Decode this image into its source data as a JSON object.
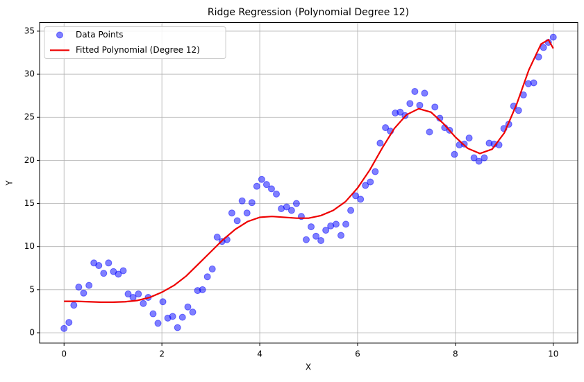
{
  "chart_data": {
    "type": "scatter",
    "title": "Ridge Regression (Polynomial Degree 12)",
    "x_label": "X",
    "y_label": "Y",
    "xlim": [
      -0.5,
      10.5
    ],
    "ylim": [
      -1.2,
      36.0
    ],
    "xticks": [
      0,
      2,
      4,
      6,
      8,
      10
    ],
    "yticks": [
      0,
      5,
      10,
      15,
      20,
      25,
      30,
      35
    ],
    "grid": true,
    "legend": "upper left",
    "series": [
      {
        "name": "Data Points",
        "type": "scatter",
        "color": "#0000ff",
        "opacity": 0.5,
        "x": [
          0,
          0.1,
          0.2,
          0.3,
          0.4,
          0.51,
          0.61,
          0.71,
          0.81,
          0.91,
          1.01,
          1.11,
          1.21,
          1.31,
          1.41,
          1.52,
          1.62,
          1.72,
          1.82,
          1.92,
          2.02,
          2.12,
          2.22,
          2.32,
          2.42,
          2.53,
          2.63,
          2.73,
          2.83,
          2.93,
          3.03,
          3.13,
          3.23,
          3.33,
          3.43,
          3.54,
          3.64,
          3.74,
          3.84,
          3.94,
          4.04,
          4.14,
          4.24,
          4.34,
          4.44,
          4.55,
          4.65,
          4.75,
          4.85,
          4.95,
          5.05,
          5.15,
          5.25,
          5.35,
          5.45,
          5.56,
          5.66,
          5.76,
          5.86,
          5.96,
          6.06,
          6.16,
          6.26,
          6.36,
          6.46,
          6.57,
          6.67,
          6.77,
          6.87,
          6.97,
          7.07,
          7.17,
          7.27,
          7.37,
          7.47,
          7.58,
          7.68,
          7.78,
          7.88,
          7.98,
          8.08,
          8.18,
          8.28,
          8.38,
          8.48,
          8.59,
          8.69,
          8.79,
          8.89,
          8.99,
          9.09,
          9.19,
          9.29,
          9.39,
          9.49,
          9.6,
          9.7,
          9.8,
          9.9,
          10
        ],
        "values": [
          0.5,
          1.2,
          3.2,
          5.3,
          4.6,
          5.5,
          8.1,
          7.8,
          6.9,
          8.1,
          7.1,
          6.8,
          7.2,
          4.5,
          4.1,
          4.5,
          3.4,
          4.1,
          2.2,
          1.1,
          3.6,
          1.7,
          1.9,
          0.6,
          1.8,
          3.0,
          2.4,
          4.9,
          5.0,
          6.5,
          7.4,
          11.1,
          10.6,
          10.8,
          13.9,
          13.0,
          15.3,
          13.9,
          15.1,
          17.0,
          17.8,
          17.2,
          16.7,
          16.1,
          14.4,
          14.6,
          14.2,
          15.0,
          13.5,
          10.8,
          12.3,
          11.2,
          10.7,
          11.9,
          12.4,
          12.6,
          11.3,
          12.6,
          14.2,
          15.9,
          15.5,
          17.1,
          17.5,
          18.7,
          22.0,
          23.8,
          23.4,
          25.5,
          25.6,
          25.2,
          26.6,
          28.0,
          26.4,
          27.8,
          23.3,
          26.2,
          24.9,
          23.8,
          23.5,
          20.7,
          21.8,
          21.9,
          22.6,
          20.3,
          19.9,
          20.3,
          22.0,
          21.9,
          21.8,
          23.7,
          24.2,
          26.3,
          25.8,
          27.6,
          28.9,
          29.0,
          32.0,
          33.1,
          33.7,
          34.3
        ]
      },
      {
        "name": "Fitted Polynomial (Degree 12)",
        "type": "line",
        "color": "#ee0000",
        "x": [
          0,
          0.25,
          0.5,
          0.75,
          1,
          1.25,
          1.5,
          1.75,
          2,
          2.25,
          2.5,
          2.75,
          3,
          3.25,
          3.5,
          3.75,
          4,
          4.25,
          4.5,
          4.75,
          5,
          5.25,
          5.5,
          5.75,
          6,
          6.25,
          6.5,
          6.75,
          7,
          7.25,
          7.5,
          7.75,
          8,
          8.25,
          8.5,
          8.75,
          9,
          9.25,
          9.5,
          9.75,
          9.9,
          10
        ],
        "values": [
          3.65,
          3.65,
          3.6,
          3.55,
          3.55,
          3.6,
          3.75,
          4.1,
          4.7,
          5.5,
          6.6,
          8.0,
          9.4,
          10.8,
          12.0,
          12.9,
          13.4,
          13.5,
          13.4,
          13.3,
          13.3,
          13.6,
          14.2,
          15.2,
          16.8,
          18.9,
          21.4,
          23.7,
          25.3,
          26.0,
          25.6,
          24.3,
          22.7,
          21.4,
          20.8,
          21.3,
          23.2,
          26.5,
          30.5,
          33.5,
          34.0,
          33.0
        ]
      }
    ]
  }
}
